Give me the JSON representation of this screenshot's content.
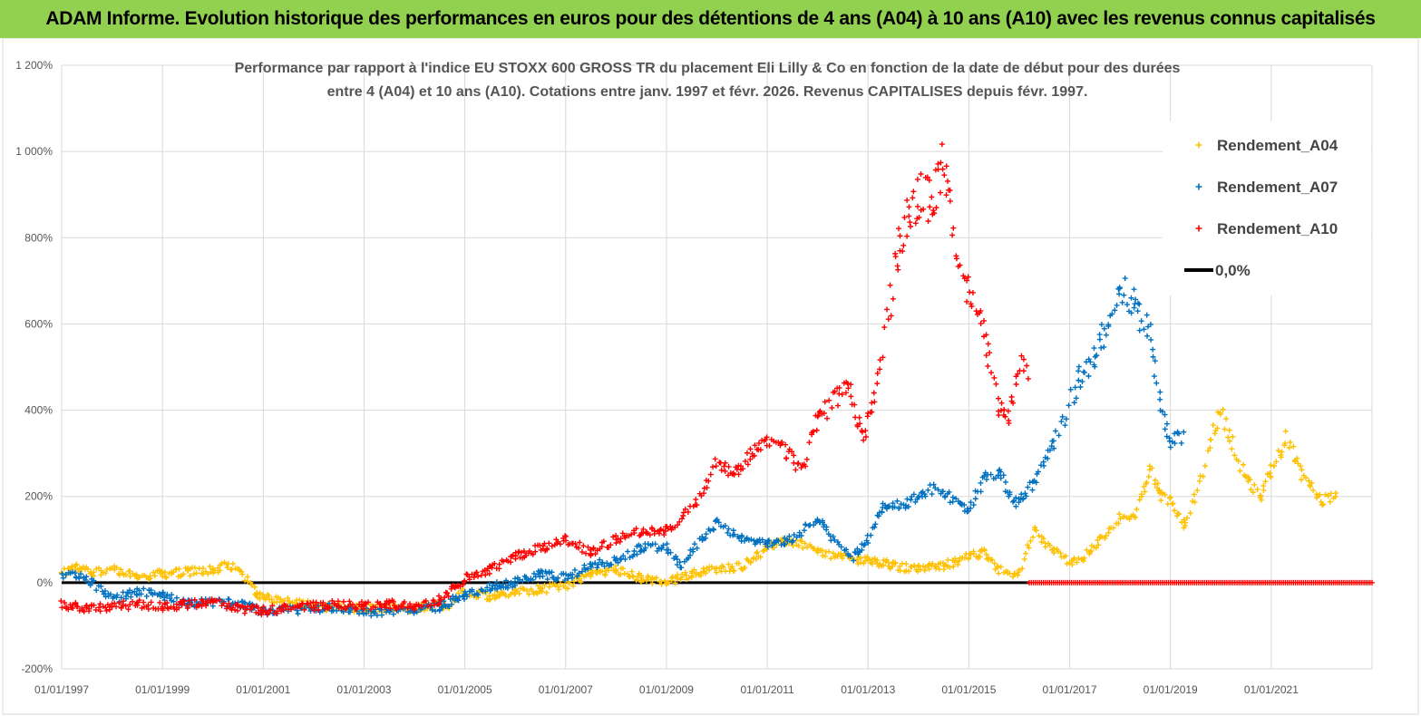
{
  "banner": {
    "title": "ADAM Informe. Evolution historique des performances en euros pour des détentions de 4 ans (A04) à 10 ans (A10) avec les revenus connus capitalisés",
    "color": "#92d050"
  },
  "chart_data": {
    "type": "scatter",
    "title_lines": [
      "Performance par rapport à l'indice EU STOXX 600 GROSS TR  du placement Eli Lilly & Co en fonction de la date de début pour des durées",
      "entre 4 (A04) et 10 ans (A10). Cotations entre janv. 1997 et févr. 2026. Revenus CAPITALISES depuis févr. 1997."
    ],
    "xlabel": "",
    "ylabel": "",
    "xlim": [
      1997.0,
      2023.0
    ],
    "ylim": [
      -200,
      1200
    ],
    "y_ticks": [
      {
        "value": -200,
        "label": "-200%"
      },
      {
        "value": 0,
        "label": "0%"
      },
      {
        "value": 200,
        "label": "200%"
      },
      {
        "value": 400,
        "label": "400%"
      },
      {
        "value": 600,
        "label": "600%"
      },
      {
        "value": 800,
        "label": "800%"
      },
      {
        "value": 1000,
        "label": "1 000%"
      },
      {
        "value": 1200,
        "label": "1 200%"
      }
    ],
    "x_ticks": [
      {
        "value": 1997,
        "label": "01/01/1997"
      },
      {
        "value": 1999,
        "label": "01/01/1999"
      },
      {
        "value": 2001,
        "label": "01/01/2001"
      },
      {
        "value": 2003,
        "label": "01/01/2003"
      },
      {
        "value": 2005,
        "label": "01/01/2005"
      },
      {
        "value": 2007,
        "label": "01/01/2007"
      },
      {
        "value": 2009,
        "label": "01/01/2009"
      },
      {
        "value": 2011,
        "label": "01/01/2011"
      },
      {
        "value": 2013,
        "label": "01/01/2013"
      },
      {
        "value": 2015,
        "label": "01/01/2015"
      },
      {
        "value": 2017,
        "label": "01/01/2017"
      },
      {
        "value": 2019,
        "label": "01/01/2019"
      },
      {
        "value": 2021,
        "label": "01/01/2021"
      }
    ],
    "grid": true,
    "legend_position": "top-right",
    "series": [
      {
        "name": "Rendement_A04",
        "color": "#ffc000",
        "marker": "+",
        "x": [
          1997.0,
          1997.3,
          1997.6,
          1998.0,
          1998.5,
          1999.0,
          1999.5,
          2000.0,
          2000.3,
          2000.6,
          2000.9,
          2001.3,
          2001.8,
          2002.3,
          2002.8,
          2003.3,
          2003.8,
          2004.3,
          2004.7,
          2005.0,
          2005.5,
          2006.0,
          2006.5,
          2007.0,
          2007.5,
          2008.0,
          2008.5,
          2009.0,
          2009.5,
          2010.0,
          2010.5,
          2011.0,
          2011.3,
          2011.7,
          2012.0,
          2012.5,
          2013.0,
          2013.5,
          2014.0,
          2014.5,
          2015.0,
          2015.3,
          2015.6,
          2016.0,
          2016.3,
          2016.6,
          2017.0,
          2017.3,
          2017.6,
          2018.0,
          2018.3,
          2018.6,
          2018.8,
          2019.0,
          2019.3,
          2019.6,
          2019.8,
          2020.0,
          2020.3,
          2020.5,
          2020.8,
          2021.0,
          2021.3,
          2021.6,
          2021.8,
          2022.0,
          2022.3
        ],
        "y": [
          20,
          35,
          25,
          30,
          15,
          20,
          25,
          30,
          40,
          20,
          -30,
          -40,
          -50,
          -55,
          -60,
          -60,
          -60,
          -55,
          -50,
          -20,
          -30,
          -20,
          -15,
          -10,
          20,
          30,
          10,
          0,
          20,
          30,
          40,
          80,
          100,
          90,
          70,
          60,
          50,
          40,
          30,
          40,
          60,
          70,
          30,
          20,
          120,
          80,
          50,
          60,
          100,
          150,
          150,
          270,
          200,
          190,
          130,
          240,
          330,
          400,
          300,
          240,
          200,
          260,
          340,
          250,
          220,
          190,
          200
        ]
      },
      {
        "name": "Rendement_A07",
        "color": "#0070c0",
        "marker": "+",
        "x": [
          1997.0,
          1997.3,
          1997.6,
          1998.0,
          1998.5,
          1999.0,
          1999.5,
          2000.0,
          2000.5,
          2001.0,
          2001.5,
          2002.0,
          2002.5,
          2003.0,
          2003.5,
          2004.0,
          2004.5,
          2005.0,
          2005.5,
          2006.0,
          2006.5,
          2007.0,
          2007.5,
          2008.0,
          2008.5,
          2009.0,
          2009.3,
          2009.7,
          2010.0,
          2010.5,
          2011.0,
          2011.5,
          2012.0,
          2012.3,
          2012.7,
          2013.0,
          2013.3,
          2013.7,
          2014.0,
          2014.3,
          2014.6,
          2015.0,
          2015.3,
          2015.6,
          2015.9,
          2016.3,
          2016.6,
          2016.9,
          2017.2,
          2017.5,
          2017.8,
          2018.0,
          2018.3,
          2018.6,
          2018.8,
          2019.0,
          2019.3
        ],
        "y": [
          20,
          15,
          0,
          -40,
          -20,
          -30,
          -50,
          -45,
          -50,
          -65,
          -65,
          -60,
          -55,
          -70,
          -65,
          -65,
          -55,
          -30,
          -10,
          0,
          20,
          10,
          40,
          50,
          80,
          80,
          40,
          100,
          140,
          100,
          90,
          100,
          150,
          100,
          60,
          100,
          180,
          180,
          200,
          220,
          200,
          170,
          240,
          260,
          180,
          230,
          300,
          380,
          480,
          520,
          620,
          700,
          640,
          580,
          420,
          320,
          350
        ]
      },
      {
        "name": "Rendement_A10",
        "color": "#ff0000",
        "marker": "+",
        "x": [
          1997.0,
          1997.5,
          1998.0,
          1998.5,
          1999.0,
          1999.5,
          2000.0,
          2000.5,
          2001.0,
          2001.5,
          2002.0,
          2002.5,
          2003.0,
          2003.5,
          2004.0,
          2004.5,
          2005.0,
          2005.5,
          2006.0,
          2006.5,
          2007.0,
          2007.5,
          2008.0,
          2008.5,
          2009.0,
          2009.3,
          2009.7,
          2010.0,
          2010.3,
          2010.7,
          2011.0,
          2011.3,
          2011.7,
          2012.0,
          2012.3,
          2012.6,
          2012.9,
          2013.2,
          2013.4,
          2013.6,
          2013.8,
          2014.0,
          2014.3,
          2014.5,
          2014.7,
          2015.0,
          2015.2,
          2015.4,
          2015.6,
          2015.8,
          2016.0,
          2016.2
        ],
        "y": [
          -50,
          -60,
          -55,
          -50,
          -55,
          -50,
          -45,
          -60,
          -65,
          -60,
          -55,
          -50,
          -55,
          -50,
          -55,
          -40,
          10,
          30,
          60,
          80,
          100,
          70,
          100,
          120,
          120,
          150,
          200,
          280,
          250,
          300,
          320,
          310,
          260,
          380,
          420,
          460,
          330,
          480,
          620,
          780,
          850,
          900,
          880,
          1000,
          800,
          680,
          620,
          520,
          400,
          380,
          500,
          500
        ]
      },
      {
        "name": "0,0%",
        "color": "#000000",
        "marker": "line",
        "x": [
          1997.0,
          2016.2
        ],
        "y": [
          0,
          0
        ]
      }
    ],
    "baseline_overlay": {
      "color": "#ff0000",
      "x_range": [
        2016.2,
        2023.0
      ],
      "y": 0
    }
  }
}
